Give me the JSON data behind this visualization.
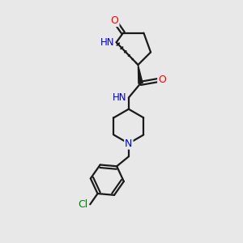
{
  "background_color": "#e8e8e8",
  "bond_color": "#1a1a1a",
  "atom_colors": {
    "O": "#ff0000",
    "N": "#0000cc",
    "Cl": "#008000"
  },
  "figsize": [
    3.0,
    3.0
  ],
  "dpi": 100,
  "lw": 1.6
}
